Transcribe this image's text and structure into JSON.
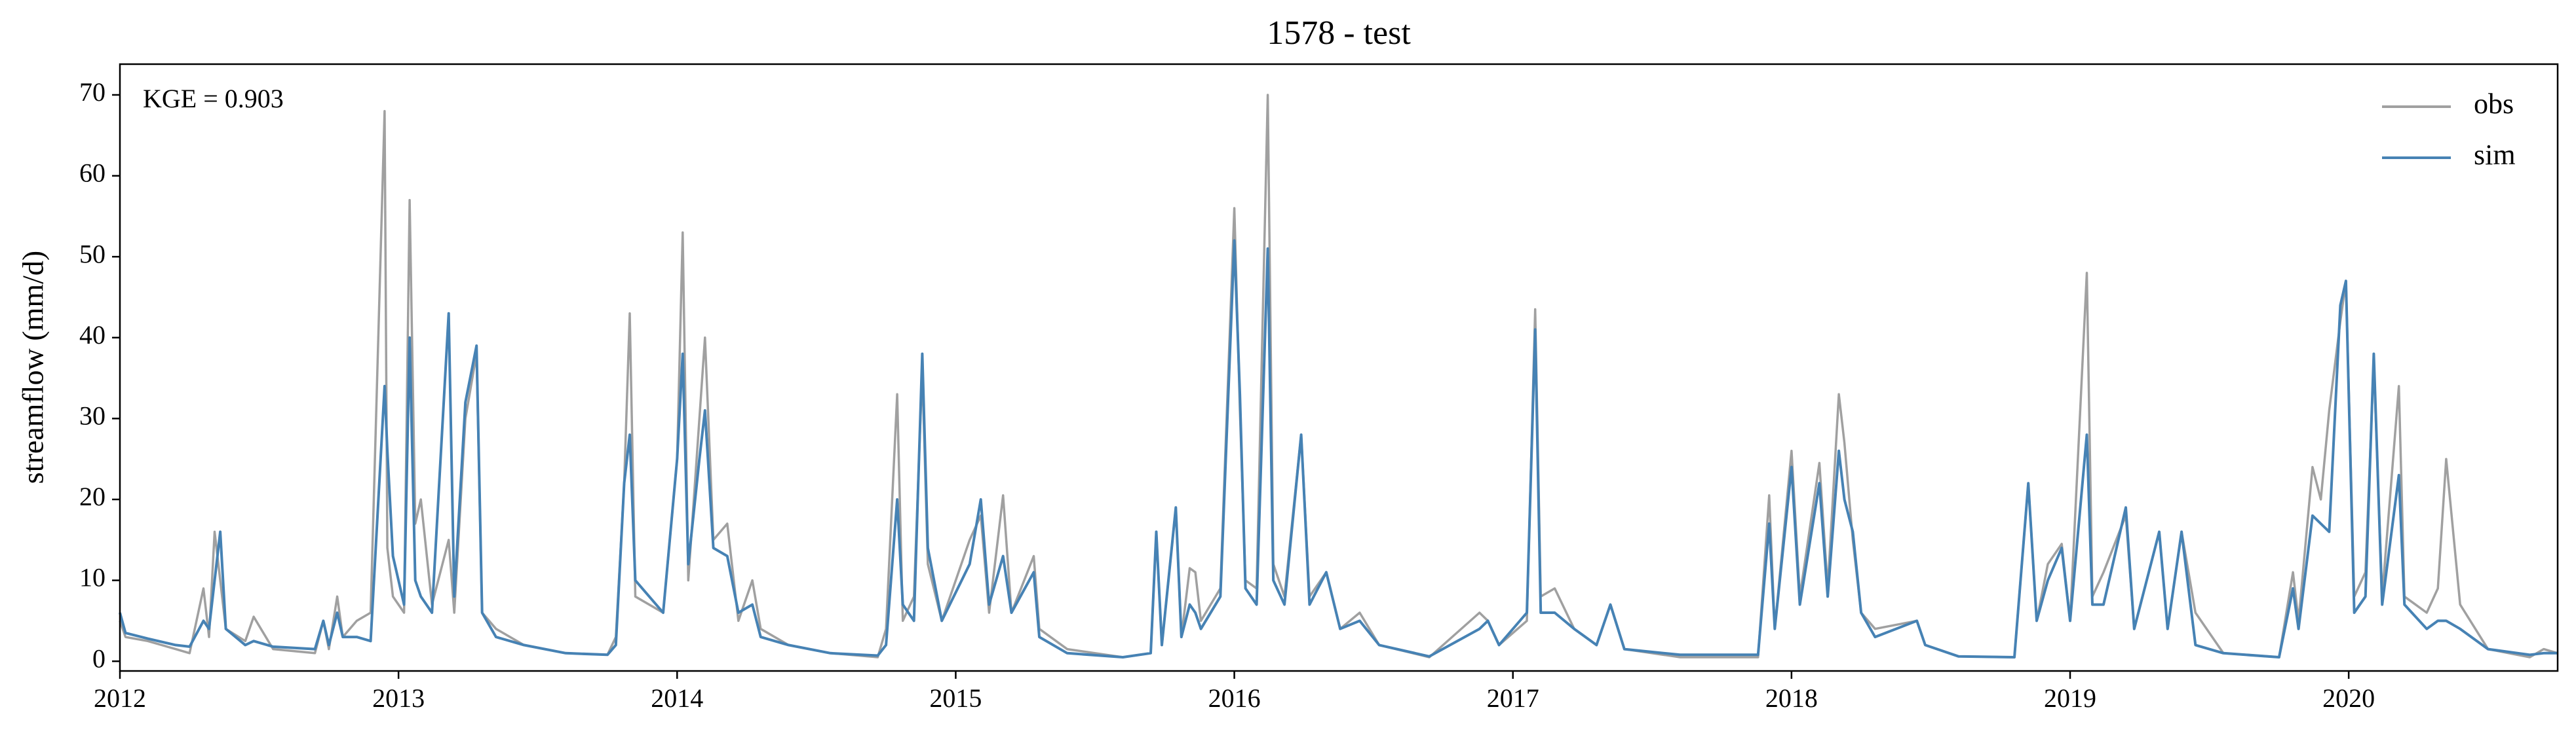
{
  "chart_data": {
    "type": "line",
    "title": "1578 - test",
    "ylabel": "streamflow (mm/d)",
    "annotation": "KGE = 0.903",
    "legend": "upper right",
    "x": [
      2012.0,
      2012.02,
      2012.1,
      2012.2,
      2012.25,
      2012.3,
      2012.32,
      2012.34,
      2012.36,
      2012.38,
      2012.45,
      2012.48,
      2012.55,
      2012.7,
      2012.73,
      2012.75,
      2012.78,
      2012.8,
      2012.85,
      2012.9,
      2012.95,
      2012.96,
      2012.98,
      2013.02,
      2013.04,
      2013.06,
      2013.08,
      2013.12,
      2013.18,
      2013.2,
      2013.24,
      2013.28,
      2013.3,
      2013.35,
      2013.45,
      2013.6,
      2013.75,
      2013.78,
      2013.81,
      2013.83,
      2013.85,
      2013.95,
      2014.0,
      2014.02,
      2014.04,
      2014.08,
      2014.1,
      2014.13,
      2014.18,
      2014.22,
      2014.27,
      2014.3,
      2014.4,
      2014.55,
      2014.72,
      2014.75,
      2014.79,
      2014.81,
      2014.85,
      2014.88,
      2014.9,
      2014.95,
      2015.05,
      2015.09,
      2015.12,
      2015.17,
      2015.2,
      2015.28,
      2015.3,
      2015.4,
      2015.6,
      2015.7,
      2015.72,
      2015.74,
      2015.79,
      2015.81,
      2015.84,
      2015.86,
      2015.88,
      2015.95,
      2016.0,
      2016.02,
      2016.04,
      2016.08,
      2016.12,
      2016.14,
      2016.18,
      2016.24,
      2016.27,
      2016.33,
      2016.38,
      2016.45,
      2016.52,
      2016.7,
      2016.88,
      2016.91,
      2016.95,
      2017.05,
      2017.08,
      2017.1,
      2017.15,
      2017.22,
      2017.3,
      2017.35,
      2017.4,
      2017.6,
      2017.88,
      2017.92,
      2017.94,
      2018.0,
      2018.03,
      2018.1,
      2018.13,
      2018.17,
      2018.19,
      2018.22,
      2018.25,
      2018.3,
      2018.45,
      2018.48,
      2018.6,
      2018.8,
      2018.85,
      2018.88,
      2018.92,
      2018.97,
      2019.0,
      2019.06,
      2019.08,
      2019.12,
      2019.2,
      2019.23,
      2019.32,
      2019.35,
      2019.4,
      2019.45,
      2019.55,
      2019.75,
      2019.8,
      2019.82,
      2019.87,
      2019.9,
      2019.93,
      2019.97,
      2019.99,
      2020.02,
      2020.06,
      2020.09,
      2020.12,
      2020.18,
      2020.2,
      2020.28,
      2020.32,
      2020.35,
      2020.4,
      2020.5,
      2020.65,
      2020.7,
      2020.75
    ],
    "series": [
      {
        "name": "obs",
        "color": "#a0a0a0",
        "values": [
          5,
          3,
          2.5,
          1.5,
          1,
          9,
          3,
          16,
          10,
          4,
          2.5,
          5.5,
          1.5,
          1,
          5,
          1.5,
          8,
          3,
          5,
          6,
          68,
          14,
          8,
          6,
          57,
          17,
          20,
          7,
          15,
          6,
          30,
          38,
          6,
          4,
          2,
          1,
          0.8,
          3,
          22,
          43,
          8,
          6,
          25,
          53,
          10,
          30,
          40,
          15,
          17,
          5,
          10,
          4,
          2,
          1,
          0.5,
          4,
          33,
          5,
          8,
          36,
          12,
          5,
          15,
          18,
          6,
          20.5,
          6,
          13,
          4,
          1.5,
          0.5,
          1,
          16,
          2,
          19,
          3,
          11.5,
          11,
          5,
          9,
          56,
          31,
          10,
          9,
          70,
          12,
          8,
          28,
          8,
          11,
          4,
          6,
          2,
          0.5,
          6,
          5,
          2,
          5,
          43.5,
          8,
          9,
          4,
          2,
          7,
          1.5,
          0.5,
          0.5,
          20.5,
          4,
          26,
          8,
          24.5,
          9,
          33,
          27,
          15,
          6,
          4,
          5,
          2,
          0.6,
          0.5,
          22,
          5,
          12,
          14.5,
          5,
          48,
          8,
          11,
          18,
          4,
          16,
          4,
          16,
          6,
          1,
          0.5,
          11,
          5,
          24,
          20,
          31,
          42,
          47,
          8,
          11,
          37,
          8,
          34,
          8,
          6,
          9,
          25,
          7,
          1.5,
          0.5,
          1.5,
          1
        ]
      },
      {
        "name": "sim",
        "color": "#4682b4",
        "values": [
          6,
          3.5,
          2.8,
          2,
          1.8,
          5,
          4,
          10,
          16,
          4,
          2,
          2.5,
          1.8,
          1.5,
          5,
          2,
          6,
          3,
          3,
          2.5,
          34,
          26,
          13,
          7,
          40,
          10,
          8,
          6,
          43,
          8,
          32,
          39,
          6,
          3,
          2,
          1,
          0.8,
          2,
          22,
          28,
          10,
          6,
          25,
          38,
          12,
          25,
          31,
          14,
          13,
          6,
          7,
          3,
          2,
          1,
          0.7,
          2,
          20,
          7,
          5,
          38,
          14,
          5,
          12,
          20,
          7,
          13,
          6,
          11,
          3,
          1,
          0.5,
          1,
          16,
          2,
          19,
          3,
          7,
          6,
          4,
          8,
          52,
          33,
          9,
          7,
          51,
          10,
          7,
          28,
          7,
          11,
          4,
          5,
          2,
          0.6,
          4,
          5,
          2,
          6,
          41,
          6,
          6,
          4,
          2,
          7,
          1.5,
          0.8,
          0.8,
          17,
          4,
          24,
          7,
          22,
          8,
          26,
          20,
          16,
          6,
          3,
          5,
          2,
          0.6,
          0.5,
          22,
          5,
          10,
          14,
          5,
          28,
          7,
          7,
          19,
          4,
          16,
          4,
          16,
          2,
          1,
          0.5,
          9,
          4,
          18,
          17,
          16,
          44,
          47,
          6,
          8,
          38,
          7,
          23,
          7,
          4,
          5,
          5,
          4,
          1.5,
          0.8,
          1,
          1
        ]
      }
    ],
    "xlim": [
      2012,
      2020.75
    ],
    "xticks": [
      2012,
      2013,
      2014,
      2015,
      2016,
      2017,
      2018,
      2019,
      2020
    ],
    "ylim": [
      -1.2,
      73.8
    ],
    "yticks": [
      0,
      10,
      20,
      30,
      40,
      50,
      60,
      70
    ]
  }
}
